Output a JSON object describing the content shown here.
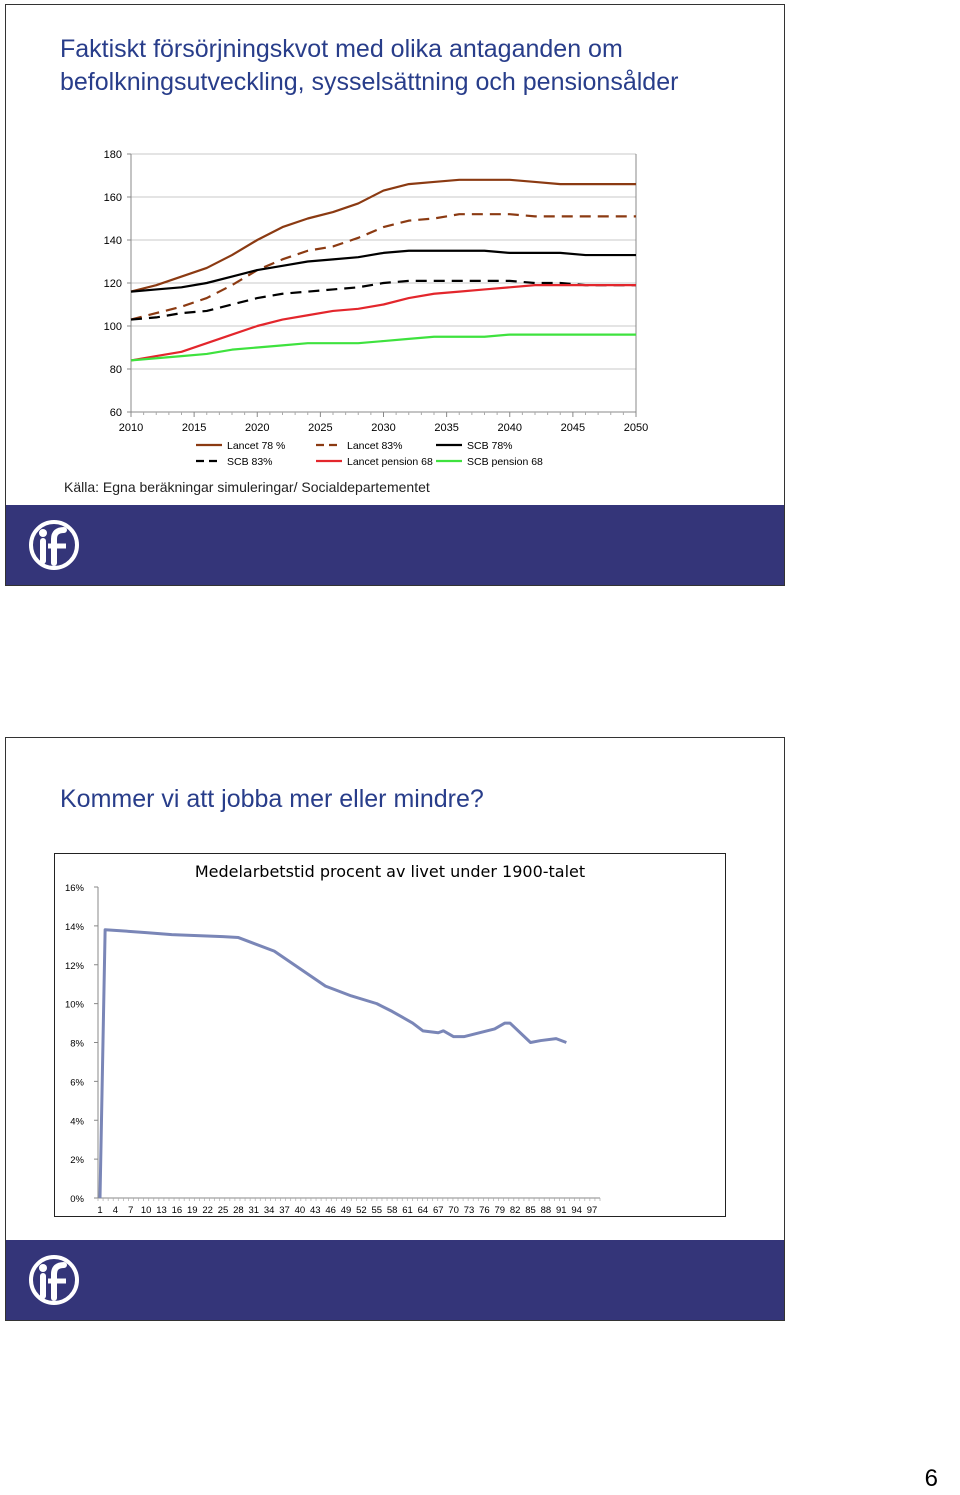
{
  "slide1": {
    "title": "Faktiskt försörjningskvot med olika antaganden om befolkningsutveckling, sysselsättning och pensionsålder",
    "source": "Källa: Egna beräkningar simuleringar/ Socialdepartementet"
  },
  "slide2": {
    "title": "Kommer vi att jobba mer eller mindre?"
  },
  "page_number": "6",
  "colors": {
    "title_blue": "#283d8a",
    "footer_navy": "#343579"
  },
  "chart_data": [
    {
      "type": "line",
      "title": "",
      "xlabel": "",
      "ylabel": "",
      "x": [
        2010,
        2012,
        2014,
        2016,
        2018,
        2020,
        2022,
        2024,
        2026,
        2028,
        2030,
        2032,
        2034,
        2036,
        2038,
        2040,
        2042,
        2044,
        2046,
        2048,
        2050
      ],
      "xticks": [
        "2010",
        "2015",
        "2020",
        "2025",
        "2030",
        "2035",
        "2040",
        "2045",
        "2050"
      ],
      "yticks": [
        "60",
        "80",
        "100",
        "120",
        "140",
        "160",
        "180"
      ],
      "xlim": [
        2010,
        2050
      ],
      "ylim": [
        60,
        180
      ],
      "grid": "horizontal",
      "legend_position": "bottom",
      "series": [
        {
          "name": "Lancet 78 %",
          "color": "#8b3a12",
          "dash": "solid",
          "values": [
            116,
            119,
            123,
            127,
            133,
            140,
            146,
            150,
            153,
            157,
            163,
            166,
            167,
            168,
            168,
            168,
            167,
            166,
            166,
            166,
            166
          ]
        },
        {
          "name": "Lancet 83%",
          "color": "#8b3a12",
          "dash": "dashed",
          "values": [
            103,
            106,
            109,
            113,
            119,
            126,
            131,
            135,
            137,
            141,
            146,
            149,
            150,
            152,
            152,
            152,
            151,
            151,
            151,
            151,
            151
          ]
        },
        {
          "name": "SCB 78%",
          "color": "#000000",
          "dash": "solid",
          "values": [
            116,
            117,
            118,
            120,
            123,
            126,
            128,
            130,
            131,
            132,
            134,
            135,
            135,
            135,
            135,
            134,
            134,
            134,
            133,
            133,
            133
          ]
        },
        {
          "name": "SCB 83%",
          "color": "#000000",
          "dash": "dashed",
          "values": [
            103,
            104,
            106,
            107,
            110,
            113,
            115,
            116,
            117,
            118,
            120,
            121,
            121,
            121,
            121,
            121,
            120,
            120,
            119,
            119,
            119
          ]
        },
        {
          "name": "Lancet pension 68",
          "color": "#e3262c",
          "dash": "solid",
          "values": [
            84,
            86,
            88,
            92,
            96,
            100,
            103,
            105,
            107,
            108,
            110,
            113,
            115,
            116,
            117,
            118,
            119,
            119,
            119,
            119,
            119
          ]
        },
        {
          "name": "SCB pension 68",
          "color": "#3ee23e",
          "dash": "solid",
          "values": [
            84,
            85,
            86,
            87,
            89,
            90,
            91,
            92,
            92,
            92,
            93,
            94,
            95,
            95,
            95,
            96,
            96,
            96,
            96,
            96,
            96
          ]
        }
      ]
    },
    {
      "type": "line",
      "title": "Medelarbetstid procent av livet under 1900-talet",
      "xlabel": "",
      "ylabel": "",
      "xticks": [
        "1",
        "4",
        "7",
        "10",
        "13",
        "16",
        "19",
        "22",
        "25",
        "28",
        "31",
        "34",
        "37",
        "40",
        "43",
        "46",
        "49",
        "52",
        "55",
        "58",
        "61",
        "64",
        "67",
        "70",
        "73",
        "76",
        "79",
        "82",
        "85",
        "88",
        "91",
        "94",
        "97"
      ],
      "yticks": [
        "0%",
        "2%",
        "4%",
        "6%",
        "8%",
        "10%",
        "12%",
        "14%",
        "16%"
      ],
      "ylim": [
        0,
        16
      ],
      "grid": "none",
      "series": [
        {
          "name": "",
          "color": "#7a86b7",
          "points": [
            [
              1,
              0
            ],
            [
              2,
              13.8
            ],
            [
              5,
              13.75
            ],
            [
              10,
              13.65
            ],
            [
              15,
              13.55
            ],
            [
              20,
              13.5
            ],
            [
              25,
              13.45
            ],
            [
              28,
              13.4
            ],
            [
              30,
              13.2
            ],
            [
              35,
              12.7
            ],
            [
              40,
              11.8
            ],
            [
              45,
              10.9
            ],
            [
              47,
              10.7
            ],
            [
              50,
              10.4
            ],
            [
              55,
              10.0
            ],
            [
              58,
              9.6
            ],
            [
              60,
              9.3
            ],
            [
              62,
              9.0
            ],
            [
              64,
              8.6
            ],
            [
              67,
              8.5
            ],
            [
              68,
              8.6
            ],
            [
              70,
              8.3
            ],
            [
              72,
              8.3
            ],
            [
              75,
              8.5
            ],
            [
              78,
              8.7
            ],
            [
              80,
              9.0
            ],
            [
              81,
              9.0
            ],
            [
              85,
              8.0
            ],
            [
              87,
              8.1
            ],
            [
              90,
              8.2
            ],
            [
              92,
              8.0
            ]
          ]
        }
      ]
    }
  ]
}
